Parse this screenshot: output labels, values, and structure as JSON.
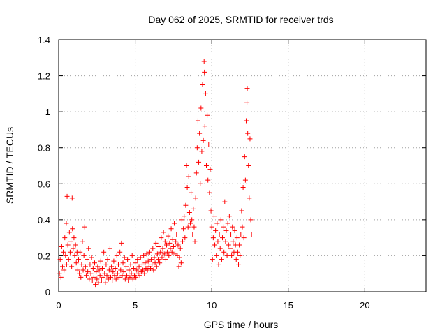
{
  "chart_data": {
    "type": "scatter",
    "title": "Day 062 of 2025, SRMTID for receiver trds",
    "xlabel": "GPS time / hours",
    "ylabel": "SRMTID / TECUs",
    "xlim": [
      0,
      24
    ],
    "ylim": [
      0,
      1.4
    ],
    "xticks": [
      0,
      5,
      10,
      15,
      20
    ],
    "yticks": [
      0,
      0.2,
      0.4,
      0.6,
      0.8,
      1,
      1.2,
      1.4
    ],
    "ytick_labels": [
      "0",
      "0.2",
      "0.4",
      "0.6",
      "0.8",
      "1",
      "1.2",
      "1.4"
    ],
    "grid": true,
    "marker": "+",
    "color": "#ff0000",
    "series": [
      {
        "name": "SRMTID",
        "points": [
          [
            0.05,
            0.1
          ],
          [
            0.1,
            0.18
          ],
          [
            0.15,
            0.08
          ],
          [
            0.2,
            0.25
          ],
          [
            0.25,
            0.14
          ],
          [
            0.3,
            0.22
          ],
          [
            0.35,
            0.12
          ],
          [
            0.4,
            0.3
          ],
          [
            0.45,
            0.2
          ],
          [
            0.5,
            0.38
          ],
          [
            0.52,
            0.15
          ],
          [
            0.55,
            0.53
          ],
          [
            0.6,
            0.26
          ],
          [
            0.65,
            0.18
          ],
          [
            0.7,
            0.33
          ],
          [
            0.75,
            0.22
          ],
          [
            0.8,
            0.28
          ],
          [
            0.85,
            0.14
          ],
          [
            0.88,
            0.52
          ],
          [
            0.9,
            0.35
          ],
          [
            0.95,
            0.24
          ],
          [
            1.0,
            0.3
          ],
          [
            1.05,
            0.2
          ],
          [
            1.1,
            0.26
          ],
          [
            1.15,
            0.16
          ],
          [
            1.2,
            0.22
          ],
          [
            1.25,
            0.12
          ],
          [
            1.3,
            0.18
          ],
          [
            1.35,
            0.1
          ],
          [
            1.4,
            0.22
          ],
          [
            1.45,
            0.08
          ],
          [
            1.5,
            0.15
          ],
          [
            1.55,
            0.28
          ],
          [
            1.6,
            0.12
          ],
          [
            1.65,
            0.2
          ],
          [
            1.7,
            0.36
          ],
          [
            1.75,
            0.14
          ],
          [
            1.8,
            0.09
          ],
          [
            1.85,
            0.18
          ],
          [
            1.9,
            0.11
          ],
          [
            1.95,
            0.24
          ],
          [
            2.0,
            0.07
          ],
          [
            2.05,
            0.15
          ],
          [
            2.1,
            0.1
          ],
          [
            2.15,
            0.19
          ],
          [
            2.2,
            0.06
          ],
          [
            2.25,
            0.13
          ],
          [
            2.3,
            0.08
          ],
          [
            2.35,
            0.16
          ],
          [
            2.4,
            0.04
          ],
          [
            2.45,
            0.11
          ],
          [
            2.5,
            0.07
          ],
          [
            2.55,
            0.14
          ],
          [
            2.6,
            0.05
          ],
          [
            2.65,
            0.12
          ],
          [
            2.7,
            0.09
          ],
          [
            2.75,
            0.17
          ],
          [
            2.8,
            0.06
          ],
          [
            2.85,
            0.13
          ],
          [
            2.9,
            0.08
          ],
          [
            2.95,
            0.22
          ],
          [
            3.0,
            0.1
          ],
          [
            3.05,
            0.05
          ],
          [
            3.1,
            0.15
          ],
          [
            3.15,
            0.09
          ],
          [
            3.2,
            0.18
          ],
          [
            3.25,
            0.07
          ],
          [
            3.3,
            0.12
          ],
          [
            3.35,
            0.24
          ],
          [
            3.4,
            0.08
          ],
          [
            3.45,
            0.14
          ],
          [
            3.5,
            0.06
          ],
          [
            3.55,
            0.11
          ],
          [
            3.6,
            0.17
          ],
          [
            3.65,
            0.09
          ],
          [
            3.7,
            0.13
          ],
          [
            3.75,
            0.07
          ],
          [
            3.8,
            0.2
          ],
          [
            3.85,
            0.1
          ],
          [
            3.9,
            0.15
          ],
          [
            3.95,
            0.08
          ],
          [
            4.0,
            0.22
          ],
          [
            4.05,
            0.12
          ],
          [
            4.1,
            0.27
          ],
          [
            4.15,
            0.09
          ],
          [
            4.2,
            0.16
          ],
          [
            4.25,
            0.11
          ],
          [
            4.3,
            0.19
          ],
          [
            4.35,
            0.07
          ],
          [
            4.4,
            0.14
          ],
          [
            4.45,
            0.09
          ],
          [
            4.5,
            0.18
          ],
          [
            4.55,
            0.06
          ],
          [
            4.6,
            0.12
          ],
          [
            4.65,
            0.08
          ],
          [
            4.7,
            0.15
          ],
          [
            4.75,
            0.1
          ],
          [
            4.8,
            0.2
          ],
          [
            4.85,
            0.07
          ],
          [
            4.9,
            0.13
          ],
          [
            4.95,
            0.09
          ],
          [
            5.0,
            0.16
          ],
          [
            5.05,
            0.08
          ],
          [
            5.1,
            0.12
          ],
          [
            5.15,
            0.18
          ],
          [
            5.2,
            0.1
          ],
          [
            5.25,
            0.14
          ],
          [
            5.3,
            0.09
          ],
          [
            5.35,
            0.19
          ],
          [
            5.4,
            0.11
          ],
          [
            5.45,
            0.15
          ],
          [
            5.5,
            0.12
          ],
          [
            5.55,
            0.2
          ],
          [
            5.6,
            0.1
          ],
          [
            5.65,
            0.16
          ],
          [
            5.7,
            0.13
          ],
          [
            5.75,
            0.21
          ],
          [
            5.8,
            0.12
          ],
          [
            5.85,
            0.17
          ],
          [
            5.9,
            0.14
          ],
          [
            5.95,
            0.22
          ],
          [
            6.0,
            0.13
          ],
          [
            6.05,
            0.18
          ],
          [
            6.1,
            0.15
          ],
          [
            6.15,
            0.24
          ],
          [
            6.2,
            0.12
          ],
          [
            6.25,
            0.19
          ],
          [
            6.3,
            0.16
          ],
          [
            6.35,
            0.27
          ],
          [
            6.4,
            0.14
          ],
          [
            6.45,
            0.21
          ],
          [
            6.5,
            0.18
          ],
          [
            6.55,
            0.25
          ],
          [
            6.6,
            0.16
          ],
          [
            6.65,
            0.22
          ],
          [
            6.7,
            0.3
          ],
          [
            6.75,
            0.19
          ],
          [
            6.8,
            0.24
          ],
          [
            6.85,
            0.33
          ],
          [
            6.9,
            0.21
          ],
          [
            6.95,
            0.28
          ],
          [
            7.0,
            0.18
          ],
          [
            7.05,
            0.26
          ],
          [
            7.1,
            0.22
          ],
          [
            7.15,
            0.31
          ],
          [
            7.2,
            0.2
          ],
          [
            7.25,
            0.27
          ],
          [
            7.3,
            0.24
          ],
          [
            7.35,
            0.35
          ],
          [
            7.4,
            0.22
          ],
          [
            7.45,
            0.29
          ],
          [
            7.5,
            0.25
          ],
          [
            7.55,
            0.38
          ],
          [
            7.6,
            0.21
          ],
          [
            7.65,
            0.28
          ],
          [
            7.7,
            0.32
          ],
          [
            7.75,
            0.2
          ],
          [
            7.8,
            0.26
          ],
          [
            7.85,
            0.14
          ],
          [
            7.9,
            0.19
          ],
          [
            7.95,
            0.24
          ],
          [
            8.0,
            0.16
          ],
          [
            8.05,
            0.4
          ],
          [
            8.1,
            0.28
          ],
          [
            8.15,
            0.35
          ],
          [
            8.2,
            0.42
          ],
          [
            8.25,
            0.3
          ],
          [
            8.3,
            0.48
          ],
          [
            8.35,
            0.7
          ],
          [
            8.4,
            0.58
          ],
          [
            8.45,
            0.36
          ],
          [
            8.5,
            0.64
          ],
          [
            8.55,
            0.44
          ],
          [
            8.6,
            0.38
          ],
          [
            8.65,
            0.55
          ],
          [
            8.7,
            0.4
          ],
          [
            8.75,
            0.32
          ],
          [
            8.8,
            0.46
          ],
          [
            8.85,
            0.36
          ],
          [
            8.9,
            0.28
          ],
          [
            8.95,
            0.52
          ],
          [
            9.0,
            0.66
          ],
          [
            9.05,
            0.8
          ],
          [
            9.1,
            0.95
          ],
          [
            9.15,
            0.72
          ],
          [
            9.2,
            0.88
          ],
          [
            9.25,
            0.6
          ],
          [
            9.3,
            1.02
          ],
          [
            9.35,
            0.78
          ],
          [
            9.4,
            1.15
          ],
          [
            9.45,
            0.84
          ],
          [
            9.5,
            1.28
          ],
          [
            9.52,
            1.22
          ],
          [
            9.55,
            0.92
          ],
          [
            9.6,
            1.1
          ],
          [
            9.65,
            0.7
          ],
          [
            9.7,
            0.98
          ],
          [
            9.75,
            0.62
          ],
          [
            9.8,
            0.82
          ],
          [
            9.85,
            0.55
          ],
          [
            9.9,
            0.68
          ],
          [
            9.95,
            0.45
          ],
          [
            10.0,
            0.36
          ],
          [
            10.05,
            0.18
          ],
          [
            10.1,
            0.3
          ],
          [
            10.15,
            0.42
          ],
          [
            10.2,
            0.26
          ],
          [
            10.25,
            0.34
          ],
          [
            10.3,
            0.2
          ],
          [
            10.35,
            0.38
          ],
          [
            10.4,
            0.28
          ],
          [
            10.45,
            0.15
          ],
          [
            10.5,
            0.32
          ],
          [
            10.55,
            0.24
          ],
          [
            10.6,
            0.4
          ],
          [
            10.65,
            0.18
          ],
          [
            10.7,
            0.3
          ],
          [
            10.75,
            0.36
          ],
          [
            10.8,
            0.22
          ],
          [
            10.85,
            0.5
          ],
          [
            10.9,
            0.28
          ],
          [
            10.95,
            0.34
          ],
          [
            11.0,
            0.2
          ],
          [
            11.05,
            0.38
          ],
          [
            11.1,
            0.26
          ],
          [
            11.15,
            0.42
          ],
          [
            11.2,
            0.24
          ],
          [
            11.25,
            0.32
          ],
          [
            11.3,
            0.2
          ],
          [
            11.35,
            0.36
          ],
          [
            11.4,
            0.28
          ],
          [
            11.45,
            0.22
          ],
          [
            11.5,
            0.34
          ],
          [
            11.55,
            0.26
          ],
          [
            11.6,
            0.18
          ],
          [
            11.65,
            0.3
          ],
          [
            11.7,
            0.22
          ],
          [
            11.75,
            0.15
          ],
          [
            11.8,
            0.26
          ],
          [
            11.85,
            0.2
          ],
          [
            11.9,
            0.32
          ],
          [
            11.95,
            0.45
          ],
          [
            12.0,
            0.36
          ],
          [
            12.05,
            0.58
          ],
          [
            12.1,
            0.3
          ],
          [
            12.15,
            0.75
          ],
          [
            12.2,
            0.62
          ],
          [
            12.25,
            0.95
          ],
          [
            12.3,
            1.05
          ],
          [
            12.32,
            1.13
          ],
          [
            12.35,
            0.88
          ],
          [
            12.4,
            0.7
          ],
          [
            12.45,
            0.52
          ],
          [
            12.5,
            0.85
          ],
          [
            12.55,
            0.4
          ],
          [
            12.6,
            0.32
          ]
        ]
      }
    ]
  }
}
